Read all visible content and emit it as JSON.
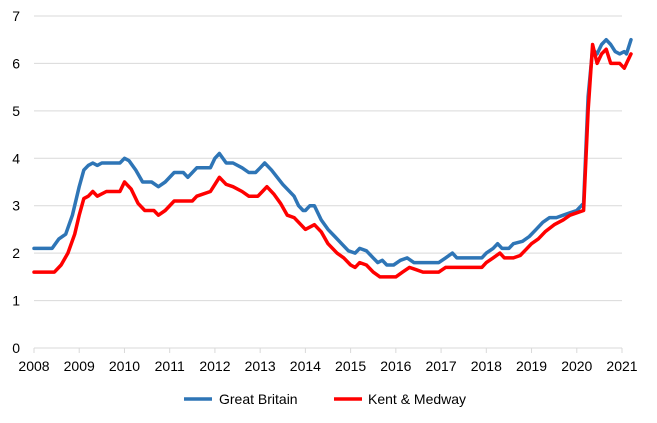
{
  "chart_data": {
    "type": "line",
    "title": "",
    "xlabel": "",
    "ylabel": "",
    "xlim": [
      2008,
      2021
    ],
    "ylim": [
      0,
      7
    ],
    "x_ticks": [
      2008,
      2009,
      2010,
      2011,
      2012,
      2013,
      2014,
      2015,
      2016,
      2017,
      2018,
      2019,
      2020,
      2021
    ],
    "y_ticks": [
      0,
      1,
      2,
      3,
      4,
      5,
      6,
      7
    ],
    "grid": "horizontal",
    "legend_position": "bottom",
    "series": [
      {
        "name": "Great Britain",
        "color": "#2E75B6",
        "points": [
          [
            2008.0,
            2.1
          ],
          [
            2008.25,
            2.1
          ],
          [
            2008.4,
            2.1
          ],
          [
            2008.55,
            2.3
          ],
          [
            2008.7,
            2.4
          ],
          [
            2008.85,
            2.8
          ],
          [
            2009.0,
            3.4
          ],
          [
            2009.1,
            3.75
          ],
          [
            2009.2,
            3.85
          ],
          [
            2009.3,
            3.9
          ],
          [
            2009.4,
            3.85
          ],
          [
            2009.5,
            3.9
          ],
          [
            2009.75,
            3.9
          ],
          [
            2009.9,
            3.9
          ],
          [
            2010.0,
            4.0
          ],
          [
            2010.1,
            3.95
          ],
          [
            2010.25,
            3.75
          ],
          [
            2010.4,
            3.5
          ],
          [
            2010.6,
            3.5
          ],
          [
            2010.75,
            3.4
          ],
          [
            2010.9,
            3.5
          ],
          [
            2011.1,
            3.7
          ],
          [
            2011.3,
            3.7
          ],
          [
            2011.4,
            3.6
          ],
          [
            2011.6,
            3.8
          ],
          [
            2011.9,
            3.8
          ],
          [
            2012.0,
            4.0
          ],
          [
            2012.1,
            4.1
          ],
          [
            2012.25,
            3.9
          ],
          [
            2012.4,
            3.9
          ],
          [
            2012.6,
            3.8
          ],
          [
            2012.75,
            3.7
          ],
          [
            2012.9,
            3.7
          ],
          [
            2013.0,
            3.8
          ],
          [
            2013.1,
            3.9
          ],
          [
            2013.25,
            3.75
          ],
          [
            2013.5,
            3.45
          ],
          [
            2013.75,
            3.2
          ],
          [
            2013.85,
            3.0
          ],
          [
            2013.95,
            2.9
          ],
          [
            2014.0,
            2.9
          ],
          [
            2014.1,
            3.0
          ],
          [
            2014.2,
            3.0
          ],
          [
            2014.35,
            2.7
          ],
          [
            2014.5,
            2.5
          ],
          [
            2014.65,
            2.35
          ],
          [
            2014.8,
            2.2
          ],
          [
            2014.95,
            2.05
          ],
          [
            2015.1,
            2.0
          ],
          [
            2015.2,
            2.1
          ],
          [
            2015.35,
            2.05
          ],
          [
            2015.5,
            1.9
          ],
          [
            2015.6,
            1.8
          ],
          [
            2015.7,
            1.85
          ],
          [
            2015.8,
            1.75
          ],
          [
            2015.95,
            1.75
          ],
          [
            2016.1,
            1.85
          ],
          [
            2016.25,
            1.9
          ],
          [
            2016.4,
            1.8
          ],
          [
            2016.6,
            1.8
          ],
          [
            2016.8,
            1.8
          ],
          [
            2016.95,
            1.8
          ],
          [
            2017.1,
            1.9
          ],
          [
            2017.25,
            2.0
          ],
          [
            2017.35,
            1.9
          ],
          [
            2017.6,
            1.9
          ],
          [
            2017.9,
            1.9
          ],
          [
            2018.0,
            2.0
          ],
          [
            2018.15,
            2.1
          ],
          [
            2018.25,
            2.2
          ],
          [
            2018.35,
            2.1
          ],
          [
            2018.5,
            2.1
          ],
          [
            2018.6,
            2.2
          ],
          [
            2018.8,
            2.25
          ],
          [
            2018.95,
            2.35
          ],
          [
            2019.1,
            2.5
          ],
          [
            2019.25,
            2.65
          ],
          [
            2019.4,
            2.75
          ],
          [
            2019.55,
            2.75
          ],
          [
            2019.7,
            2.8
          ],
          [
            2019.85,
            2.85
          ],
          [
            2020.0,
            2.9
          ],
          [
            2020.1,
            3.0
          ],
          [
            2020.15,
            3.05
          ],
          [
            2020.25,
            5.3
          ],
          [
            2020.35,
            6.3
          ],
          [
            2020.45,
            6.2
          ],
          [
            2020.55,
            6.4
          ],
          [
            2020.65,
            6.5
          ],
          [
            2020.75,
            6.4
          ],
          [
            2020.85,
            6.25
          ],
          [
            2020.95,
            6.2
          ],
          [
            2021.05,
            6.25
          ],
          [
            2021.1,
            6.2
          ],
          [
            2021.2,
            6.5
          ]
        ]
      },
      {
        "name": "Kent & Medway",
        "color": "#FF0000",
        "points": [
          [
            2008.0,
            1.6
          ],
          [
            2008.25,
            1.6
          ],
          [
            2008.45,
            1.6
          ],
          [
            2008.6,
            1.75
          ],
          [
            2008.75,
            2.0
          ],
          [
            2008.9,
            2.4
          ],
          [
            2009.0,
            2.8
          ],
          [
            2009.1,
            3.15
          ],
          [
            2009.2,
            3.2
          ],
          [
            2009.3,
            3.3
          ],
          [
            2009.4,
            3.2
          ],
          [
            2009.6,
            3.3
          ],
          [
            2009.9,
            3.3
          ],
          [
            2010.0,
            3.5
          ],
          [
            2010.15,
            3.35
          ],
          [
            2010.3,
            3.05
          ],
          [
            2010.45,
            2.9
          ],
          [
            2010.65,
            2.9
          ],
          [
            2010.75,
            2.8
          ],
          [
            2010.9,
            2.9
          ],
          [
            2011.1,
            3.1
          ],
          [
            2011.4,
            3.1
          ],
          [
            2011.5,
            3.1
          ],
          [
            2011.6,
            3.2
          ],
          [
            2011.9,
            3.3
          ],
          [
            2012.0,
            3.45
          ],
          [
            2012.1,
            3.6
          ],
          [
            2012.25,
            3.45
          ],
          [
            2012.4,
            3.4
          ],
          [
            2012.6,
            3.3
          ],
          [
            2012.75,
            3.2
          ],
          [
            2012.95,
            3.2
          ],
          [
            2013.05,
            3.3
          ],
          [
            2013.15,
            3.4
          ],
          [
            2013.3,
            3.25
          ],
          [
            2013.45,
            3.05
          ],
          [
            2013.6,
            2.8
          ],
          [
            2013.75,
            2.75
          ],
          [
            2013.9,
            2.6
          ],
          [
            2014.0,
            2.5
          ],
          [
            2014.1,
            2.55
          ],
          [
            2014.2,
            2.6
          ],
          [
            2014.35,
            2.45
          ],
          [
            2014.5,
            2.2
          ],
          [
            2014.7,
            2.0
          ],
          [
            2014.85,
            1.9
          ],
          [
            2015.0,
            1.75
          ],
          [
            2015.1,
            1.7
          ],
          [
            2015.2,
            1.8
          ],
          [
            2015.35,
            1.75
          ],
          [
            2015.5,
            1.6
          ],
          [
            2015.65,
            1.5
          ],
          [
            2015.85,
            1.5
          ],
          [
            2016.0,
            1.5
          ],
          [
            2016.15,
            1.6
          ],
          [
            2016.3,
            1.7
          ],
          [
            2016.45,
            1.65
          ],
          [
            2016.6,
            1.6
          ],
          [
            2016.8,
            1.6
          ],
          [
            2016.95,
            1.6
          ],
          [
            2017.1,
            1.7
          ],
          [
            2017.3,
            1.7
          ],
          [
            2017.6,
            1.7
          ],
          [
            2017.9,
            1.7
          ],
          [
            2018.0,
            1.8
          ],
          [
            2018.15,
            1.9
          ],
          [
            2018.3,
            2.0
          ],
          [
            2018.4,
            1.9
          ],
          [
            2018.6,
            1.9
          ],
          [
            2018.75,
            1.95
          ],
          [
            2018.9,
            2.1
          ],
          [
            2019.0,
            2.2
          ],
          [
            2019.15,
            2.3
          ],
          [
            2019.3,
            2.45
          ],
          [
            2019.5,
            2.6
          ],
          [
            2019.7,
            2.7
          ],
          [
            2019.85,
            2.8
          ],
          [
            2020.0,
            2.85
          ],
          [
            2020.15,
            2.9
          ],
          [
            2020.25,
            5.0
          ],
          [
            2020.35,
            6.4
          ],
          [
            2020.45,
            6.0
          ],
          [
            2020.55,
            6.2
          ],
          [
            2020.65,
            6.3
          ],
          [
            2020.75,
            6.0
          ],
          [
            2020.85,
            6.0
          ],
          [
            2020.95,
            6.0
          ],
          [
            2021.05,
            5.9
          ],
          [
            2021.1,
            6.0
          ],
          [
            2021.2,
            6.2
          ]
        ]
      }
    ]
  }
}
